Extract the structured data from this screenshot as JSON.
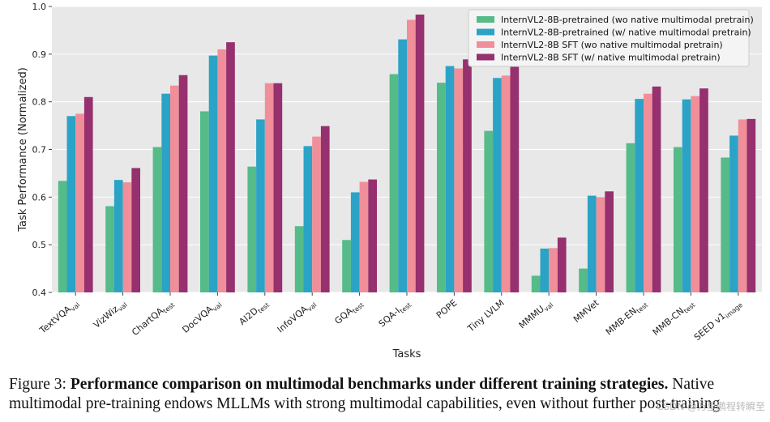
{
  "chart_data": {
    "type": "bar",
    "title": "",
    "xlabel": "Tasks",
    "ylabel": "Task Performance (Normalized)",
    "ylim": [
      0.4,
      1.0
    ],
    "yticks": [
      "0.4",
      "0.5",
      "0.6",
      "0.7",
      "0.8",
      "0.9",
      "1.0"
    ],
    "grid": true,
    "legend_position": "top-right",
    "categories": [
      {
        "base": "TextVQA",
        "sub": "val"
      },
      {
        "base": "VizWiz",
        "sub": "val"
      },
      {
        "base": "ChartQA",
        "sub": "test"
      },
      {
        "base": "DocVQA",
        "sub": "val"
      },
      {
        "base": "AI2D",
        "sub": "test"
      },
      {
        "base": "InfoVQA",
        "sub": "val"
      },
      {
        "base": "GQA",
        "sub": "test"
      },
      {
        "base": "SQA-I",
        "sub": "test"
      },
      {
        "base": "POPE",
        "sub": ""
      },
      {
        "base": "Tiny LVLM",
        "sub": ""
      },
      {
        "base": "MMMU",
        "sub": "val"
      },
      {
        "base": "MMVet",
        "sub": ""
      },
      {
        "base": "MMB-EN",
        "sub": "test"
      },
      {
        "base": "MMB-CN",
        "sub": "test"
      },
      {
        "base": "SEED v1",
        "sub": "image"
      }
    ],
    "series": [
      {
        "name": "InternVL2-8B-pretrained (wo native multimodal pretrain)",
        "color": "#55bb88",
        "values": [
          0.634,
          0.581,
          0.705,
          0.78,
          0.664,
          0.539,
          0.51,
          0.858,
          0.84,
          0.739,
          0.435,
          0.45,
          0.713,
          0.705,
          0.683
        ]
      },
      {
        "name": "InternVL2-8B-pretrained (w/ native multimodal pretrain)",
        "color": "#2ba3c6",
        "values": [
          0.77,
          0.636,
          0.817,
          0.897,
          0.763,
          0.707,
          0.61,
          0.931,
          0.875,
          0.85,
          0.492,
          0.603,
          0.806,
          0.805,
          0.729
        ]
      },
      {
        "name": "InternVL2-8B SFT (wo native multimodal pretrain)",
        "color": "#f08f9a",
        "values": [
          0.775,
          0.631,
          0.834,
          0.91,
          0.839,
          0.727,
          0.632,
          0.972,
          0.87,
          0.855,
          0.493,
          0.6,
          0.817,
          0.812,
          0.763
        ]
      },
      {
        "name": "InternVL2-8B SFT (w/ native multimodal pretrain)",
        "color": "#96306e",
        "values": [
          0.81,
          0.661,
          0.856,
          0.925,
          0.839,
          0.749,
          0.637,
          0.983,
          0.889,
          0.879,
          0.515,
          0.612,
          0.832,
          0.828,
          0.764
        ]
      }
    ]
  },
  "caption": {
    "label": "Figure 3: ",
    "bold": "Performance comparison on multimodal benchmarks under different training strategies.",
    "text": " Native multimodal pre-training endows MLLMs with strong multimodal capabilities, even without further post-training"
  },
  "watermark": "CSDN @万里鹏程转瞬至"
}
